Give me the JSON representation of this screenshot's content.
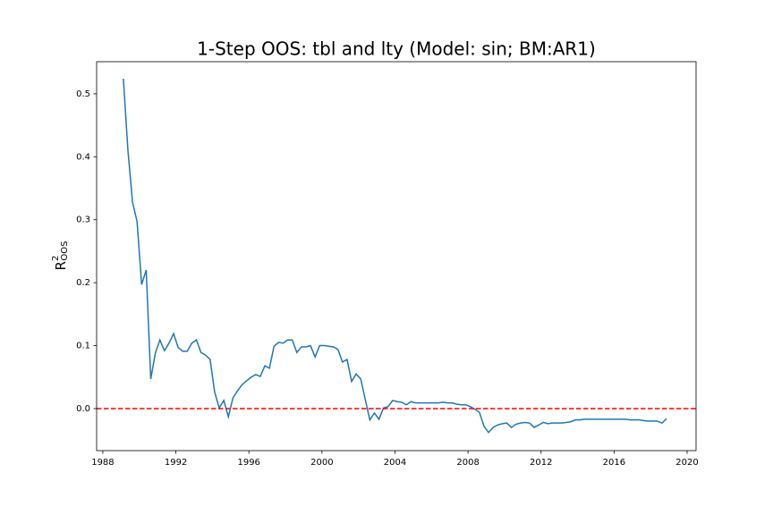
{
  "chart_data": {
    "type": "line",
    "title": "1-Step OOS: tbl and lty (Model: sin; BM:AR1)",
    "ylabel": {
      "base": "R",
      "sup": "2",
      "sub": "OOS"
    },
    "x": [
      1989.125,
      1989.375,
      1989.625,
      1989.875,
      1990.125,
      1990.375,
      1990.625,
      1990.875,
      1991.125,
      1991.375,
      1991.625,
      1991.875,
      1992.125,
      1992.375,
      1992.625,
      1992.875,
      1993.125,
      1993.375,
      1993.625,
      1993.875,
      1994.125,
      1994.375,
      1994.625,
      1994.875,
      1995.125,
      1995.375,
      1995.625,
      1995.875,
      1996.125,
      1996.375,
      1996.625,
      1996.875,
      1997.125,
      1997.375,
      1997.625,
      1997.875,
      1998.125,
      1998.375,
      1998.625,
      1998.875,
      1999.125,
      1999.375,
      1999.625,
      1999.875,
      2000.125,
      2000.375,
      2000.625,
      2000.875,
      2001.125,
      2001.375,
      2001.625,
      2001.875,
      2002.125,
      2002.375,
      2002.625,
      2002.875,
      2003.125,
      2003.375,
      2003.625,
      2003.875,
      2004.125,
      2004.375,
      2004.625,
      2004.875,
      2005.125,
      2005.375,
      2005.625,
      2005.875,
      2006.125,
      2006.375,
      2006.625,
      2006.875,
      2007.125,
      2007.375,
      2007.625,
      2007.875,
      2008.125,
      2008.375,
      2008.625,
      2008.875,
      2009.125,
      2009.375,
      2009.625,
      2009.875,
      2010.125,
      2010.375,
      2010.625,
      2010.875,
      2011.125,
      2011.375,
      2011.625,
      2011.875,
      2012.125,
      2012.375,
      2012.625,
      2012.875,
      2013.125,
      2013.375,
      2013.625,
      2013.875,
      2014.125,
      2014.375,
      2014.625,
      2014.875,
      2015.125,
      2015.375,
      2015.625,
      2015.875,
      2016.125,
      2016.375,
      2016.625,
      2016.875,
      2017.125,
      2017.375,
      2017.625,
      2017.875,
      2018.125,
      2018.375,
      2018.625,
      2018.875
    ],
    "series": [
      {
        "color": "#1f77b4",
        "values": [
          0.524,
          0.41,
          0.328,
          0.297,
          0.197,
          0.22,
          0.047,
          0.088,
          0.109,
          0.092,
          0.104,
          0.119,
          0.097,
          0.091,
          0.091,
          0.104,
          0.109,
          0.089,
          0.085,
          0.078,
          0.026,
          0.001,
          0.013,
          -0.013,
          0.017,
          0.028,
          0.038,
          0.044,
          0.05,
          0.054,
          0.051,
          0.068,
          0.064,
          0.099,
          0.105,
          0.104,
          0.109,
          0.109,
          0.089,
          0.098,
          0.098,
          0.1,
          0.082,
          0.1,
          0.1,
          0.099,
          0.098,
          0.094,
          0.074,
          0.078,
          0.043,
          0.055,
          0.047,
          0.014,
          -0.018,
          -0.007,
          -0.017,
          0.001,
          0.003,
          0.013,
          0.011,
          0.01,
          0.006,
          0.011,
          0.009,
          0.009,
          0.009,
          0.009,
          0.009,
          0.009,
          0.01,
          0.009,
          0.009,
          0.007,
          0.006,
          0.006,
          0.003,
          -0.001,
          -0.006,
          -0.028,
          -0.038,
          -0.03,
          -0.026,
          -0.024,
          -0.023,
          -0.03,
          -0.025,
          -0.023,
          -0.022,
          -0.023,
          -0.03,
          -0.026,
          -0.022,
          -0.024,
          -0.023,
          -0.023,
          -0.023,
          -0.022,
          -0.021,
          -0.018,
          -0.018,
          -0.017,
          -0.017,
          -0.017,
          -0.017,
          -0.017,
          -0.017,
          -0.017,
          -0.017,
          -0.017,
          -0.017,
          -0.018,
          -0.018,
          -0.018,
          -0.019,
          -0.02,
          -0.02,
          -0.02,
          -0.023,
          -0.016
        ]
      }
    ],
    "hline": {
      "value": 0,
      "color": "#ff0000",
      "style": "dashed"
    },
    "xlim": [
      1987.66,
      2020.49
    ],
    "ylim": [
      -0.0668,
      0.551
    ],
    "xticks": [
      1988,
      1992,
      1996,
      2000,
      2004,
      2008,
      2012,
      2016,
      2020
    ],
    "yticks": [
      {
        "value": 0,
        "label": "0.0"
      },
      0.1,
      0.2,
      0.3,
      0.4,
      0.5
    ],
    "grid": false
  }
}
